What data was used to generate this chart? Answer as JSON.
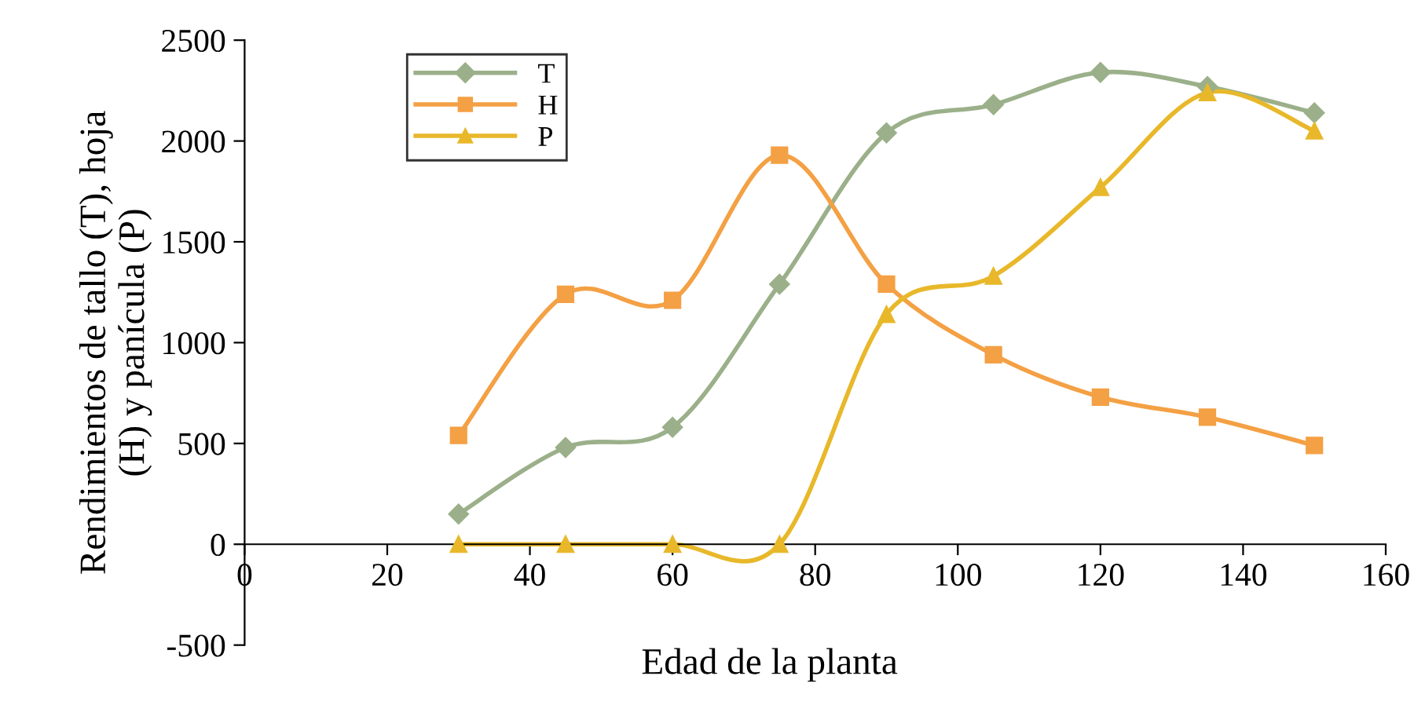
{
  "chart_data": {
    "type": "line",
    "xlabel": "Edad de la planta",
    "ylabel": "Rendimientos de tallo (T), hoja\n(H) y panícula (P)",
    "x": [
      30,
      45,
      60,
      75,
      90,
      105,
      120,
      135,
      150
    ],
    "series": [
      {
        "name": "T",
        "color": "#9bb08a",
        "marker": "diamond",
        "values": [
          150,
          480,
          580,
          1290,
          2040,
          2180,
          2340,
          2270,
          2140
        ]
      },
      {
        "name": "H",
        "color": "#f4a044",
        "marker": "square",
        "values": [
          540,
          1240,
          1210,
          1930,
          1290,
          940,
          730,
          630,
          490
        ]
      },
      {
        "name": "P",
        "color": "#e8b82a",
        "marker": "triangle",
        "values": [
          0,
          0,
          0,
          0,
          1140,
          1330,
          1770,
          2240,
          2050
        ]
      }
    ],
    "xlim": [
      0,
      160
    ],
    "xticks": [
      0,
      20,
      40,
      60,
      80,
      100,
      120,
      140,
      160
    ],
    "ylim": [
      -500,
      2500
    ],
    "yticks": [
      -500,
      0,
      500,
      1000,
      1500,
      2000,
      2500
    ],
    "grid": false,
    "legend": "top left",
    "line_style": "solid"
  }
}
